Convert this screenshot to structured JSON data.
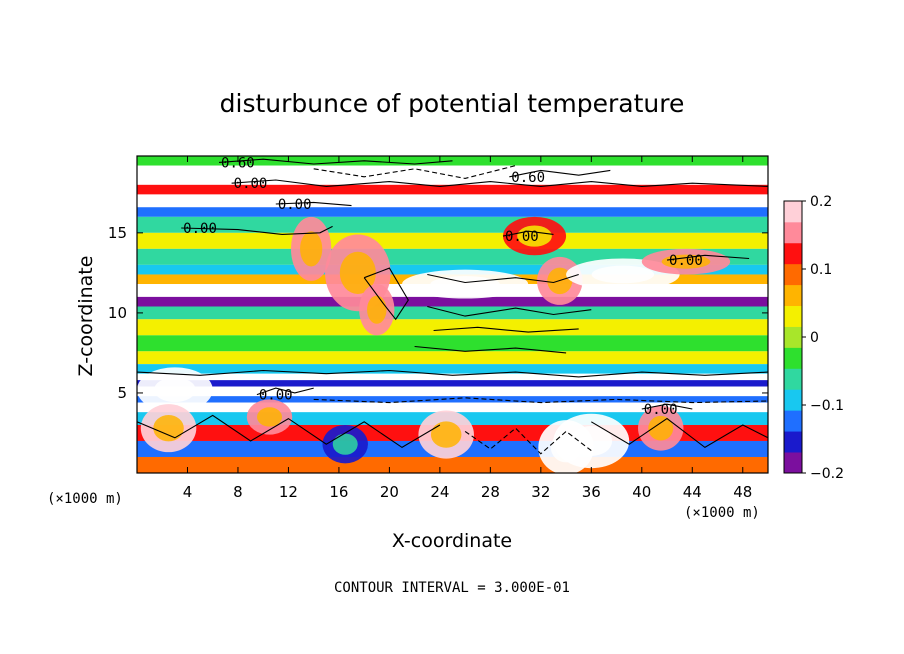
{
  "chart_data": {
    "type": "heatmap",
    "title": "disturbunce of potential temperature",
    "xlabel": "X-coordinate",
    "ylabel": "Z-coordinate",
    "x_unit": "(×1000 m)",
    "z_unit": "(×1000 m)",
    "xlim": [
      0,
      50
    ],
    "ylim": [
      0,
      19.8
    ],
    "xticks": [
      4,
      8,
      12,
      16,
      20,
      24,
      28,
      32,
      36,
      40,
      44,
      48
    ],
    "yticks": [
      5,
      10,
      15
    ],
    "colorbar": {
      "range": [
        -0.2,
        0.2
      ],
      "ticks": [
        0.2,
        0.1,
        0,
        -0.1,
        -0.2
      ],
      "tick_labels": [
        "0.2",
        "0.1",
        "0",
        "−0.1",
        "−0.2"
      ],
      "colors": [
        "#7b0f9e",
        "#1a1acc",
        "#1f6fff",
        "#18c8f0",
        "#30d8a0",
        "#2ee02e",
        "#a8e62a",
        "#f4f000",
        "#ffb400",
        "#ff6a00",
        "#ff1010",
        "#ff8a9a",
        "#ffd0d8"
      ]
    },
    "zero_band_color": "#ffffff",
    "layers": [
      {
        "z": [
          19.2,
          19.8
        ],
        "value": -0.02
      },
      {
        "z": [
          18.0,
          19.2
        ],
        "value": 0.0
      },
      {
        "z": [
          17.4,
          18.0
        ],
        "value": 0.12
      },
      {
        "z": [
          16.6,
          17.4
        ],
        "value": 0.0
      },
      {
        "z": [
          16.0,
          16.6
        ],
        "value": -0.12
      },
      {
        "z": [
          15.0,
          16.0
        ],
        "value": -0.05
      },
      {
        "z": [
          14.0,
          15.0
        ],
        "value": 0.025
      },
      {
        "z": [
          13.0,
          14.0
        ],
        "value": -0.05
      },
      {
        "z": [
          12.4,
          13.0
        ],
        "value": -0.1
      },
      {
        "z": [
          11.8,
          12.4
        ],
        "value": 0.05
      },
      {
        "z": [
          11.0,
          11.8
        ],
        "value": 0.0
      },
      {
        "z": [
          10.4,
          11.0
        ],
        "value": -0.18
      },
      {
        "z": [
          9.6,
          10.4
        ],
        "value": -0.05
      },
      {
        "z": [
          8.6,
          9.6
        ],
        "value": 0.03
      },
      {
        "z": [
          7.6,
          8.6
        ],
        "value": -0.04
      },
      {
        "z": [
          6.8,
          7.6
        ],
        "value": 0.035
      },
      {
        "z": [
          6.2,
          6.8
        ],
        "value": -0.1
      },
      {
        "z": [
          5.8,
          6.2
        ],
        "value": 0.0
      },
      {
        "z": [
          5.4,
          5.8
        ],
        "value": -0.16
      },
      {
        "z": [
          4.8,
          5.4
        ],
        "value": 0.0
      },
      {
        "z": [
          4.4,
          4.8
        ],
        "value": -0.12
      },
      {
        "z": [
          3.8,
          4.4
        ],
        "value": 0.0
      },
      {
        "z": [
          3.0,
          3.8
        ],
        "value": -0.1
      },
      {
        "z": [
          2.0,
          3.0
        ],
        "value": 0.12
      },
      {
        "z": [
          1.0,
          2.0
        ],
        "value": -0.13
      },
      {
        "z": [
          0.0,
          1.0
        ],
        "value": 0.1
      }
    ],
    "plumes": [
      {
        "x": 13.8,
        "z": 14.0,
        "rx": 1.6,
        "rz": 2.0,
        "value": 0.15
      },
      {
        "x": 17.5,
        "z": 12.5,
        "rx": 2.6,
        "rz": 2.4,
        "value": 0.14
      },
      {
        "x": 19.0,
        "z": 10.2,
        "rx": 1.4,
        "rz": 1.6,
        "value": 0.16
      },
      {
        "x": 26.0,
        "z": 11.8,
        "rx": 5.0,
        "rz": 0.9,
        "value": 0.0
      },
      {
        "x": 31.5,
        "z": 14.8,
        "rx": 2.5,
        "rz": 1.2,
        "value": 0.12
      },
      {
        "x": 33.5,
        "z": 12.0,
        "rx": 1.8,
        "rz": 1.5,
        "value": 0.15
      },
      {
        "x": 38.5,
        "z": 12.4,
        "rx": 4.5,
        "rz": 1.0,
        "value": 0.0
      },
      {
        "x": 43.5,
        "z": 13.2,
        "rx": 3.5,
        "rz": 0.8,
        "value": 0.14
      },
      {
        "x": 3.0,
        "z": 5.2,
        "rx": 3.0,
        "rz": 1.4,
        "value": 0.0
      },
      {
        "x": 2.5,
        "z": 2.8,
        "rx": 2.2,
        "rz": 1.5,
        "value": 0.17
      },
      {
        "x": 10.5,
        "z": 3.5,
        "rx": 1.8,
        "rz": 1.1,
        "value": 0.16
      },
      {
        "x": 24.5,
        "z": 2.4,
        "rx": 2.2,
        "rz": 1.5,
        "value": 0.17
      },
      {
        "x": 36.0,
        "z": 2.0,
        "rx": 3.0,
        "rz": 1.7,
        "value": 0.0
      },
      {
        "x": 41.5,
        "z": 2.8,
        "rx": 1.8,
        "rz": 1.4,
        "value": 0.16
      },
      {
        "x": 34.0,
        "z": 1.6,
        "rx": 2.2,
        "rz": 1.7,
        "value": 0.0
      },
      {
        "x": 16.5,
        "z": 1.8,
        "rx": 1.8,
        "rz": 1.2,
        "value": -0.15
      }
    ],
    "contours": [
      {
        "label": "0.60",
        "points": [
          [
            6.5,
            19.4
          ],
          [
            10.0,
            19.6
          ],
          [
            14.0,
            19.3
          ],
          [
            18.0,
            19.5
          ],
          [
            22.0,
            19.3
          ],
          [
            25.0,
            19.5
          ]
        ],
        "dashed": false
      },
      {
        "label": "0.00",
        "points": [
          [
            7.5,
            18.1
          ],
          [
            11.0,
            18.3
          ],
          [
            15.0,
            17.9
          ],
          [
            20.0,
            18.2
          ],
          [
            24.0,
            17.9
          ],
          [
            28.0,
            18.2
          ],
          [
            32.0,
            17.9
          ],
          [
            36.0,
            18.2
          ],
          [
            40.0,
            17.9
          ],
          [
            44.0,
            18.1
          ],
          [
            50.0,
            17.9
          ]
        ],
        "dashed": false
      },
      {
        "label": "0.60",
        "points": [
          [
            29.5,
            18.5
          ],
          [
            32.0,
            18.9
          ],
          [
            35.0,
            18.6
          ],
          [
            37.5,
            18.9
          ]
        ],
        "dashed": false
      },
      {
        "label": "0.00",
        "points": [
          [
            11.0,
            16.8
          ],
          [
            14.0,
            16.9
          ],
          [
            17.0,
            16.7
          ]
        ],
        "dashed": false
      },
      {
        "label": "0.00",
        "points": [
          [
            3.5,
            15.3
          ],
          [
            8.0,
            15.2
          ],
          [
            11.5,
            14.9
          ],
          [
            14.5,
            15.0
          ],
          [
            15.5,
            15.4
          ]
        ],
        "dashed": false
      },
      {
        "label": "0.00",
        "points": [
          [
            29.0,
            14.8
          ],
          [
            31.0,
            15.1
          ],
          [
            33.0,
            14.9
          ]
        ],
        "dashed": false
      },
      {
        "label": "0.00",
        "points": [
          [
            42.0,
            13.3
          ],
          [
            45.0,
            13.6
          ],
          [
            48.5,
            13.4
          ]
        ],
        "dashed": false
      },
      {
        "label": "",
        "points": [
          [
            23.0,
            12.4
          ],
          [
            26.0,
            11.9
          ],
          [
            30.0,
            12.2
          ],
          [
            33.0,
            11.9
          ],
          [
            35.0,
            12.4
          ]
        ],
        "dashed": false
      },
      {
        "label": "",
        "points": [
          [
            23.0,
            10.4
          ],
          [
            26.0,
            9.8
          ],
          [
            30.0,
            10.3
          ],
          [
            33.0,
            9.9
          ],
          [
            36.0,
            10.2
          ]
        ],
        "dashed": false
      },
      {
        "label": "",
        "points": [
          [
            23.5,
            8.9
          ],
          [
            27.0,
            9.1
          ],
          [
            31.0,
            8.8
          ],
          [
            35.0,
            9.0
          ]
        ],
        "dashed": false
      },
      {
        "label": "",
        "points": [
          [
            22.0,
            7.9
          ],
          [
            26.0,
            7.6
          ],
          [
            30.0,
            7.8
          ],
          [
            34.0,
            7.5
          ]
        ],
        "dashed": false
      },
      {
        "label": "",
        "points": [
          [
            0.0,
            6.3
          ],
          [
            5.0,
            6.1
          ],
          [
            10.0,
            6.4
          ],
          [
            15.0,
            6.2
          ],
          [
            20.0,
            6.4
          ],
          [
            25.0,
            6.1
          ],
          [
            30.0,
            6.3
          ],
          [
            35.0,
            6.0
          ],
          [
            40.0,
            6.3
          ],
          [
            45.0,
            6.1
          ],
          [
            50.0,
            6.3
          ]
        ],
        "dashed": false
      },
      {
        "label": "",
        "points": [
          [
            14.0,
            4.6
          ],
          [
            20.0,
            4.4
          ],
          [
            26.0,
            4.7
          ],
          [
            32.0,
            4.4
          ],
          [
            38.0,
            4.6
          ],
          [
            44.0,
            4.4
          ],
          [
            50.0,
            4.5
          ]
        ],
        "dashed": true
      },
      {
        "label": "",
        "points": [
          [
            26.0,
            2.6
          ],
          [
            28.0,
            1.5
          ],
          [
            30.0,
            2.8
          ],
          [
            32.0,
            1.2
          ],
          [
            34.0,
            2.6
          ],
          [
            36.0,
            1.4
          ]
        ],
        "dashed": true
      },
      {
        "label": "",
        "points": [
          [
            14.0,
            19.0
          ],
          [
            18.0,
            18.5
          ],
          [
            22.0,
            19.0
          ],
          [
            26.0,
            18.4
          ],
          [
            30.0,
            19.2
          ]
        ],
        "dashed": true
      },
      {
        "label": "",
        "points": [
          [
            0.0,
            3.2
          ],
          [
            3.0,
            2.2
          ],
          [
            6.0,
            3.6
          ],
          [
            9.0,
            2.0
          ],
          [
            12.0,
            3.4
          ],
          [
            15.0,
            1.8
          ],
          [
            18.0,
            3.2
          ],
          [
            21.0,
            1.6
          ],
          [
            24.0,
            3.0
          ]
        ],
        "dashed": false
      },
      {
        "label": "",
        "points": [
          [
            36.0,
            3.2
          ],
          [
            39.0,
            1.8
          ],
          [
            42.0,
            3.4
          ],
          [
            45.0,
            1.6
          ],
          [
            48.0,
            3.0
          ],
          [
            50.0,
            2.2
          ]
        ],
        "dashed": false
      },
      {
        "label": "",
        "points": [
          [
            18.0,
            12.2
          ],
          [
            19.5,
            10.6
          ],
          [
            20.5,
            9.6
          ],
          [
            21.5,
            10.8
          ],
          [
            20.0,
            12.8
          ],
          [
            18.0,
            12.2
          ]
        ],
        "dashed": false
      },
      {
        "label": "0.00",
        "points": [
          [
            9.5,
            4.9
          ],
          [
            11.0,
            5.3
          ],
          [
            12.5,
            5.0
          ],
          [
            14.0,
            5.3
          ]
        ],
        "dashed": false
      },
      {
        "label": "0.00",
        "points": [
          [
            40.0,
            4.0
          ],
          [
            42.0,
            4.3
          ],
          [
            44.0,
            4.0
          ]
        ],
        "dashed": false
      }
    ],
    "footer": "CONTOUR INTERVAL = 3.000E-01"
  }
}
